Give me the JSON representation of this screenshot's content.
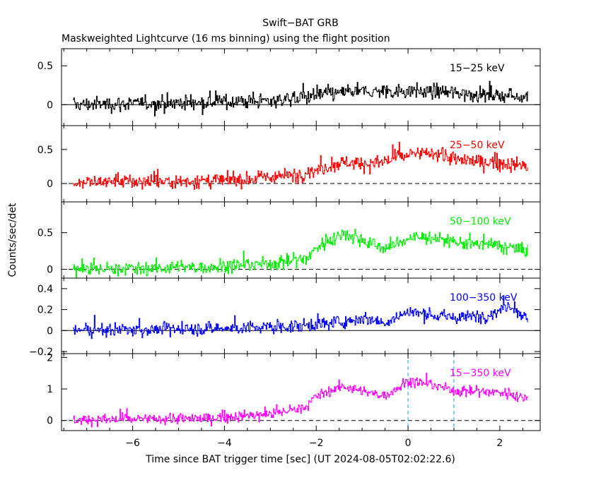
{
  "figure": {
    "title": "Swift−BAT GRB",
    "subtitle": "Maskweighted Lightcurve (16 ms binning) using the flight position",
    "xlabel": "Time since BAT trigger time [sec] (UT 2024-08-05T02:02:22.6)",
    "ylabel": "Counts/sec/det"
  },
  "chart_data": {
    "type": "line",
    "x_range": [
      -7.55,
      2.88
    ],
    "x_ticks": [
      -6,
      -4,
      -2,
      0,
      2
    ],
    "x_tick_labels": [
      "−6",
      "−4",
      "−2",
      "0",
      "2"
    ],
    "x_start": -7.3,
    "x_end": 2.62,
    "bin_seconds": 0.016,
    "markers": [
      {
        "x": 0,
        "color": "#1fa3d8",
        "style": "dashed"
      },
      {
        "x": 1.0,
        "color": "#1fa3d8",
        "style": "dashed"
      }
    ],
    "panels": [
      {
        "name": "15−25 keV",
        "color": "#000000",
        "ylim": [
          -0.27,
          0.72
        ],
        "yticks": [
          0,
          0.5
        ],
        "ytick_labels": [
          "0",
          "0.5"
        ],
        "zero_line": "solid",
        "noise_sd": 0.08,
        "profile": [
          [
            -7.3,
            0.0
          ],
          [
            -4.5,
            0.03
          ],
          [
            -3.0,
            0.05
          ],
          [
            -2.0,
            0.12
          ],
          [
            -1.4,
            0.16
          ],
          [
            0.0,
            0.18
          ],
          [
            1.0,
            0.15
          ],
          [
            2.0,
            0.12
          ],
          [
            2.62,
            0.1
          ]
        ]
      },
      {
        "name": "25−50 keV",
        "color": "#ff0000",
        "ylim": [
          -0.27,
          0.85
        ],
        "yticks": [
          0,
          0.5
        ],
        "ytick_labels": [
          "0",
          "0.5"
        ],
        "zero_line": "dashed",
        "noise_sd": 0.09,
        "profile": [
          [
            -7.3,
            0.02
          ],
          [
            -4.0,
            0.04
          ],
          [
            -2.5,
            0.12
          ],
          [
            -2.0,
            0.2
          ],
          [
            -1.4,
            0.32
          ],
          [
            -0.8,
            0.28
          ],
          [
            0.0,
            0.42
          ],
          [
            0.6,
            0.45
          ],
          [
            1.0,
            0.35
          ],
          [
            2.0,
            0.3
          ],
          [
            2.62,
            0.25
          ]
        ]
      },
      {
        "name": "50−100 keV",
        "color": "#00ee00",
        "ylim": [
          -0.12,
          0.92
        ],
        "yticks": [
          0,
          0.5
        ],
        "ytick_labels": [
          "0",
          "0.5"
        ],
        "zero_line": "dashed",
        "noise_sd": 0.08,
        "profile": [
          [
            -7.3,
            0.0
          ],
          [
            -4.5,
            0.03
          ],
          [
            -3.0,
            0.08
          ],
          [
            -2.2,
            0.15
          ],
          [
            -2.0,
            0.3
          ],
          [
            -1.4,
            0.5
          ],
          [
            -1.0,
            0.4
          ],
          [
            -0.5,
            0.28
          ],
          [
            0.0,
            0.42
          ],
          [
            0.5,
            0.44
          ],
          [
            1.0,
            0.36
          ],
          [
            2.0,
            0.32
          ],
          [
            2.62,
            0.25
          ]
        ]
      },
      {
        "name": "100−350 keV",
        "color": "#0000ff",
        "ylim": [
          -0.22,
          0.5
        ],
        "yticks": [
          -0.2,
          0,
          0.2,
          0.4
        ],
        "ytick_labels": [
          "−0.2",
          "0",
          "0.2",
          "0.4"
        ],
        "zero_line": "solid",
        "noise_sd": 0.05,
        "profile": [
          [
            -7.3,
            0.0
          ],
          [
            -4.0,
            0.02
          ],
          [
            -2.5,
            0.04
          ],
          [
            -1.5,
            0.08
          ],
          [
            -1.0,
            0.12
          ],
          [
            -0.5,
            0.08
          ],
          [
            0.0,
            0.18
          ],
          [
            0.5,
            0.15
          ],
          [
            1.0,
            0.12
          ],
          [
            1.8,
            0.15
          ],
          [
            2.2,
            0.25
          ],
          [
            2.62,
            0.1
          ]
        ]
      },
      {
        "name": "15−350 keV",
        "color": "#ff00ff",
        "ylim": [
          -0.32,
          2.12
        ],
        "yticks": [
          0,
          1,
          2
        ],
        "ytick_labels": [
          "0",
          "1",
          "2"
        ],
        "zero_line": "dashed",
        "noise_sd": 0.14,
        "profile": [
          [
            -7.3,
            0.02
          ],
          [
            -4.5,
            0.06
          ],
          [
            -3.0,
            0.2
          ],
          [
            -2.2,
            0.45
          ],
          [
            -2.0,
            0.8
          ],
          [
            -1.4,
            1.1
          ],
          [
            -1.0,
            0.9
          ],
          [
            -0.5,
            0.8
          ],
          [
            0.0,
            1.25
          ],
          [
            0.5,
            1.15
          ],
          [
            1.0,
            0.95
          ],
          [
            2.0,
            0.9
          ],
          [
            2.62,
            0.7
          ]
        ]
      }
    ]
  }
}
